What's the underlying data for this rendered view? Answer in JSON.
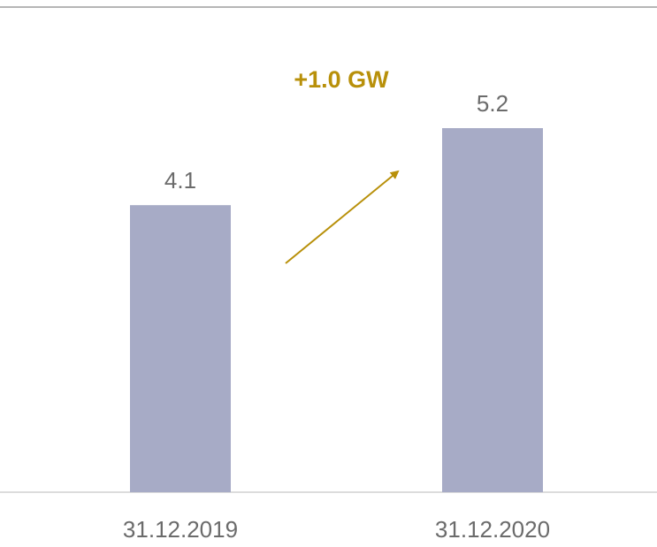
{
  "chart_data": {
    "type": "bar",
    "categories": [
      "31.12.2019",
      "31.12.2020"
    ],
    "values": [
      4.1,
      5.2
    ],
    "color": "#a7abc6",
    "annotation": "+1.0 GW",
    "annotation_color": "#b8900a"
  }
}
